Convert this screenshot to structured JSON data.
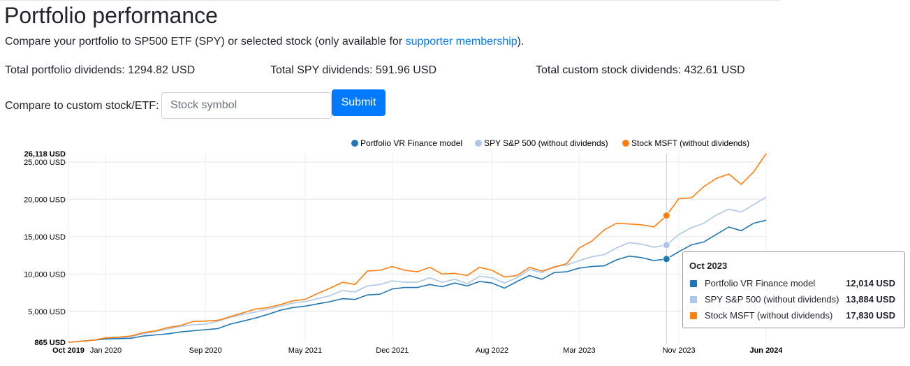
{
  "page": {
    "title": "Portfolio performance",
    "intro_text": "Compare your portfolio to SP500 ETF (SPY) or selected stock (only available for ",
    "intro_link": "supporter membership",
    "intro_end": ")."
  },
  "totals": {
    "portfolio": "Total portfolio dividends: 1294.82 USD",
    "spy": "Total SPY dividends: 591.96 USD",
    "custom": "Total custom stock dividends: 432.61 USD"
  },
  "compare": {
    "label": "Compare to custom stock/ETF:",
    "placeholder": "Stock symbol",
    "value": "",
    "submit_label": "Submit"
  },
  "tooltip": {
    "title": "Oct 2023",
    "rows": [
      {
        "name": "Portfolio VR Finance model",
        "value": "12,014 USD",
        "color": "#1f77b4"
      },
      {
        "name": "SPY S&P 500 (without dividends)",
        "value": "13,884 USD",
        "color": "#aec7e8"
      },
      {
        "name": "Stock MSFT (without dividends)",
        "value": "17,830 USD",
        "color": "#ff7f0e"
      }
    ]
  },
  "chart_data": {
    "type": "line",
    "x": [
      "Oct 2019",
      "Nov 2019",
      "Dec 2019",
      "Jan 2020",
      "Feb 2020",
      "Mar 2020",
      "Apr 2020",
      "May 2020",
      "Jun 2020",
      "Jul 2020",
      "Aug 2020",
      "Sep 2020",
      "Oct 2020",
      "Nov 2020",
      "Dec 2020",
      "Jan 2021",
      "Feb 2021",
      "Mar 2021",
      "Apr 2021",
      "May 2021",
      "Jun 2021",
      "Jul 2021",
      "Aug 2021",
      "Sep 2021",
      "Oct 2021",
      "Nov 2021",
      "Dec 2021",
      "Jan 2022",
      "Feb 2022",
      "Mar 2022",
      "Apr 2022",
      "May 2022",
      "Jun 2022",
      "Jul 2022",
      "Aug 2022",
      "Sep 2022",
      "Oct 2022",
      "Nov 2022",
      "Dec 2022",
      "Jan 2023",
      "Feb 2023",
      "Mar 2023",
      "Apr 2023",
      "May 2023",
      "Jun 2023",
      "Jul 2023",
      "Aug 2023",
      "Sep 2023",
      "Oct 2023",
      "Nov 2023",
      "Dec 2023",
      "Jan 2024",
      "Feb 2024",
      "Mar 2024",
      "Apr 2024",
      "May 2024",
      "Jun 2024"
    ],
    "series": [
      {
        "name": "Portfolio VR Finance model",
        "color": "#1f77b4",
        "values": [
          865,
          1000,
          1150,
          1300,
          1350,
          1400,
          1700,
          1850,
          2000,
          2250,
          2400,
          2550,
          2700,
          3300,
          3700,
          4100,
          4600,
          5150,
          5500,
          5700,
          6000,
          6300,
          6700,
          6600,
          7200,
          7300,
          8000,
          8200,
          8200,
          8600,
          8300,
          8800,
          8400,
          9000,
          8800,
          8100,
          9000,
          9800,
          9300,
          10200,
          10300,
          10800,
          11000,
          11100,
          11900,
          12400,
          12200,
          11800,
          12014,
          13000,
          13900,
          14300,
          15300,
          16300,
          15800,
          16800,
          17200
        ]
      },
      {
        "name": "SPY S&P 500 (without dividends)",
        "color": "#aec7e8",
        "values": [
          865,
          1000,
          1150,
          1350,
          1450,
          1600,
          2000,
          2300,
          2650,
          3000,
          3200,
          3300,
          3700,
          4200,
          4600,
          4900,
          5300,
          5700,
          6100,
          6300,
          6700,
          7100,
          7800,
          7600,
          8400,
          8600,
          9100,
          8900,
          8900,
          9500,
          8900,
          9300,
          8700,
          9700,
          9500,
          8800,
          9500,
          10600,
          10200,
          11000,
          11200,
          11800,
          12300,
          12600,
          13500,
          14200,
          14000,
          13600,
          13884,
          15300,
          16200,
          16800,
          17900,
          18700,
          18300,
          19300,
          20300
        ]
      },
      {
        "name": "Stock MSFT (without dividends)",
        "color": "#ff7f0e",
        "values": [
          865,
          1000,
          1150,
          1450,
          1550,
          1700,
          2150,
          2400,
          2850,
          3100,
          3650,
          3700,
          3800,
          4300,
          4800,
          5300,
          5500,
          5900,
          6400,
          6600,
          7400,
          8100,
          8900,
          8600,
          10400,
          10500,
          11000,
          10500,
          10300,
          10900,
          10000,
          10100,
          9800,
          10900,
          10500,
          9600,
          9800,
          10900,
          10400,
          10900,
          11400,
          13500,
          14400,
          15900,
          16800,
          16700,
          16600,
          16300,
          17830,
          20100,
          20200,
          21700,
          22800,
          23400,
          22000,
          23700,
          26118
        ]
      }
    ],
    "y_axis": {
      "min": 865,
      "max": 26118,
      "ticks": [
        "865 USD",
        "5,000 USD",
        "10,000 USD",
        "15,000 USD",
        "20,000 USD",
        "25,000 USD",
        "26,118 USD"
      ]
    },
    "x_ticks": [
      {
        "label": "Oct 2019",
        "index": 0
      },
      {
        "label": "Jan 2020",
        "index": 3
      },
      {
        "label": "Sep 2020",
        "index": 11
      },
      {
        "label": "May 2021",
        "index": 19
      },
      {
        "label": "Dec 2021",
        "index": 26
      },
      {
        "label": "Aug 2022",
        "index": 34
      },
      {
        "label": "Mar 2023",
        "index": 41
      },
      {
        "label": "Nov 2023",
        "index": 49
      },
      {
        "label": "Jun 2024",
        "index": 56
      }
    ],
    "highlight_index": 48,
    "legend_position": "top-right",
    "grid": true
  }
}
